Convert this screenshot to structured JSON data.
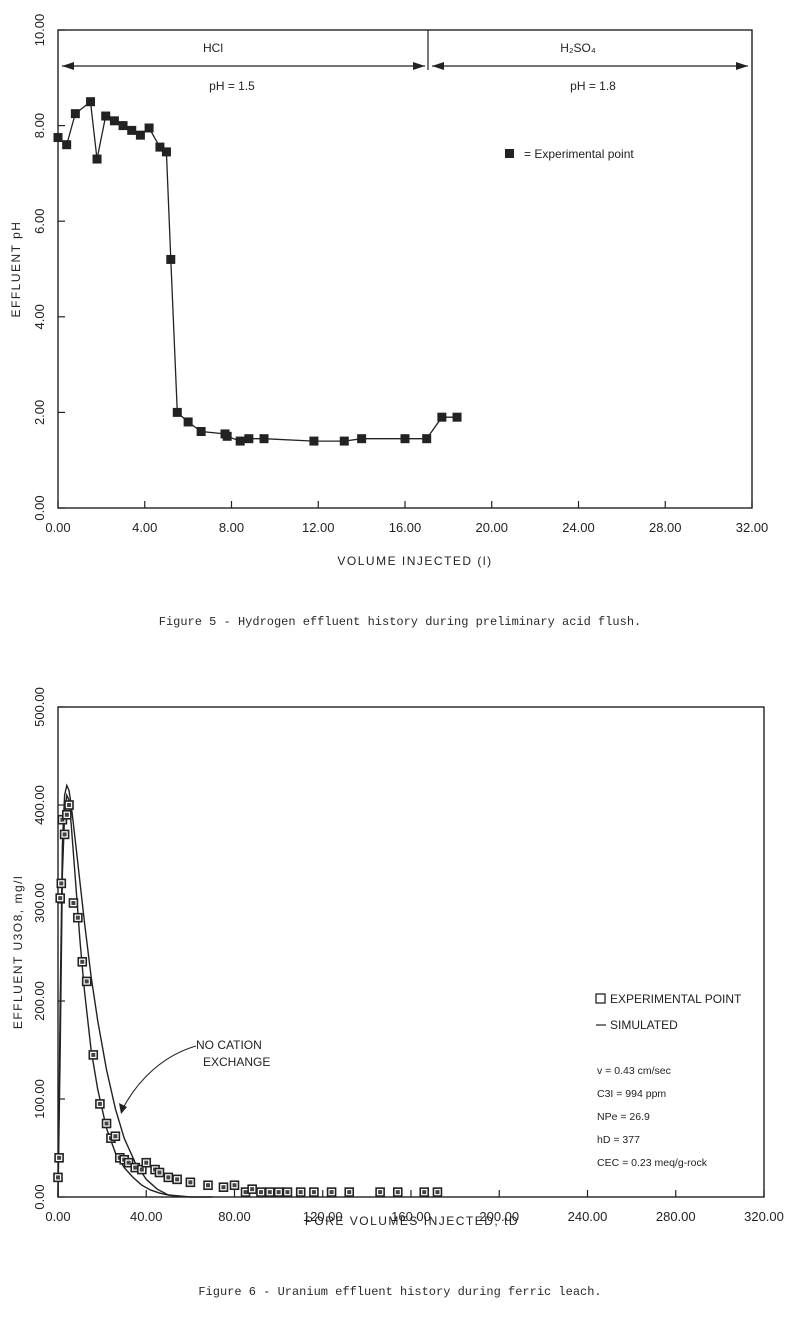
{
  "chart_data": [
    {
      "type": "line",
      "xlabel": "VOLUME INJECTED (l)",
      "ylabel": "EFFLUENT pH",
      "xlim": [
        0,
        32
      ],
      "ylim": [
        0,
        10
      ],
      "x_ticks": [
        "0.00",
        "4.00",
        "8.00",
        "12.00",
        "16.00",
        "20.00",
        "24.00",
        "28.00",
        "32.00"
      ],
      "y_ticks": [
        "0.00",
        "2.00",
        "4.00",
        "6.00",
        "8.00",
        "10.00"
      ],
      "regions": [
        {
          "name": "HCl",
          "condition": "pH = 1.5",
          "x_range": [
            0,
            17
          ]
        },
        {
          "name": "H2SO4",
          "condition": "pH = 1.8",
          "x_range": [
            17,
            32
          ]
        }
      ],
      "legend": "= Experimental point",
      "series": [
        {
          "x": [
            0.0,
            0.4,
            0.8,
            1.5,
            1.8,
            2.2,
            2.6,
            3.0,
            3.4,
            3.8,
            4.2,
            4.7,
            5.0,
            5.2,
            5.5,
            6.0,
            6.6,
            7.7,
            7.8,
            8.4,
            8.8,
            9.5,
            11.8,
            13.2,
            14.0,
            16.0,
            17.0,
            17.7,
            18.4
          ],
          "y": [
            7.75,
            7.6,
            8.25,
            8.5,
            7.3,
            8.2,
            8.1,
            8.0,
            7.9,
            7.8,
            7.95,
            7.55,
            7.45,
            5.2,
            2.0,
            1.8,
            1.6,
            1.55,
            1.5,
            1.4,
            1.45,
            1.45,
            1.4,
            1.4,
            1.45,
            1.45,
            1.45,
            1.9,
            1.9
          ]
        }
      ],
      "grid": false
    },
    {
      "type": "scatter",
      "xlabel": "PORE VOLUMES INJECTED, tD",
      "ylabel": "EFFLUENT U3O8, mg/l",
      "xlim": [
        0,
        320
      ],
      "ylim": [
        0,
        500
      ],
      "x_ticks": [
        "0.00",
        "40.00",
        "80.00",
        "120.00",
        "160.00",
        "200.00",
        "240.00",
        "280.00",
        "320.00"
      ],
      "y_ticks": [
        "0.00",
        "100.00",
        "200.00",
        "300.00",
        "400.00",
        "500.00"
      ],
      "legend": [
        "EXPERIMENTAL POINT",
        "SIMULATED"
      ],
      "annotation": [
        "NO CATION",
        "EXCHANGE"
      ],
      "parameters": [
        "v = 0.43 cm/sec",
        "C3I = 994 ppm",
        "NPe = 26.9",
        "hD = 377",
        "CEC = 0.23 meq/g-rock"
      ],
      "series": [
        {
          "name": "EXPERIMENTAL POINT",
          "x": [
            0,
            0.5,
            1,
            1.5,
            2,
            3,
            4,
            5,
            7,
            9,
            11,
            13,
            16,
            19,
            22,
            24,
            26,
            28,
            30,
            32,
            35,
            38,
            40,
            44,
            46,
            50,
            54,
            60,
            68,
            75,
            80,
            85,
            88,
            92,
            96,
            100,
            104,
            110,
            116,
            124,
            132,
            146,
            154,
            166,
            172
          ],
          "y": [
            20,
            40,
            305,
            320,
            385,
            370,
            390,
            400,
            300,
            285,
            240,
            220,
            145,
            95,
            75,
            60,
            62,
            40,
            38,
            35,
            30,
            28,
            35,
            28,
            25,
            20,
            18,
            15,
            12,
            10,
            12,
            5,
            8,
            5,
            5,
            5,
            5,
            5,
            5,
            5,
            5,
            5,
            5,
            5,
            5
          ]
        },
        {
          "name": "SIMULATED",
          "x": [
            0,
            1,
            2,
            3,
            4,
            5,
            6,
            8,
            10,
            12,
            15,
            18,
            22,
            26,
            30,
            34,
            38,
            42,
            46,
            50,
            55,
            60,
            70
          ],
          "y": [
            0,
            150,
            330,
            390,
            410,
            405,
            380,
            320,
            260,
            210,
            150,
            110,
            70,
            45,
            30,
            20,
            12,
            7,
            4,
            2,
            1,
            0,
            0
          ]
        },
        {
          "name": "NO CATION EXCHANGE",
          "x": [
            0,
            1,
            2,
            3,
            4,
            5,
            6,
            8,
            10,
            12,
            15,
            18,
            22,
            26,
            30,
            35,
            40,
            45,
            50,
            55
          ],
          "y": [
            0,
            200,
            360,
            410,
            420,
            415,
            400,
            360,
            320,
            280,
            225,
            180,
            130,
            90,
            60,
            35,
            18,
            8,
            2,
            0
          ]
        }
      ],
      "grid": false
    }
  ],
  "captions": {
    "fig5": "Figure 5 - Hydrogen effluent history during preliminary acid flush.",
    "fig6": "Figure 6 - Uranium effluent history during ferric leach."
  },
  "text": {
    "hcl_label": "HCl",
    "h2so4_label": "H₂SO₄",
    "ph_hcl": "pH = 1.5",
    "ph_h2so4": "pH = 1.8",
    "legend1": "= Experimental point",
    "legend2_exp": "EXPERIMENTAL POINT",
    "legend2_sim": "SIMULATED",
    "nce_1": "NO CATION",
    "nce_2": "EXCHANGE",
    "param_v": "v = 0.43 cm/sec",
    "param_c": "C3I = 994 ppm",
    "param_npe": "NPe = 26.9",
    "param_hd": "hD = 377",
    "param_cec": "CEC = 0.23 meq/g-rock"
  },
  "colors": {
    "ink": "#222222",
    "paper": "#ffffff"
  }
}
